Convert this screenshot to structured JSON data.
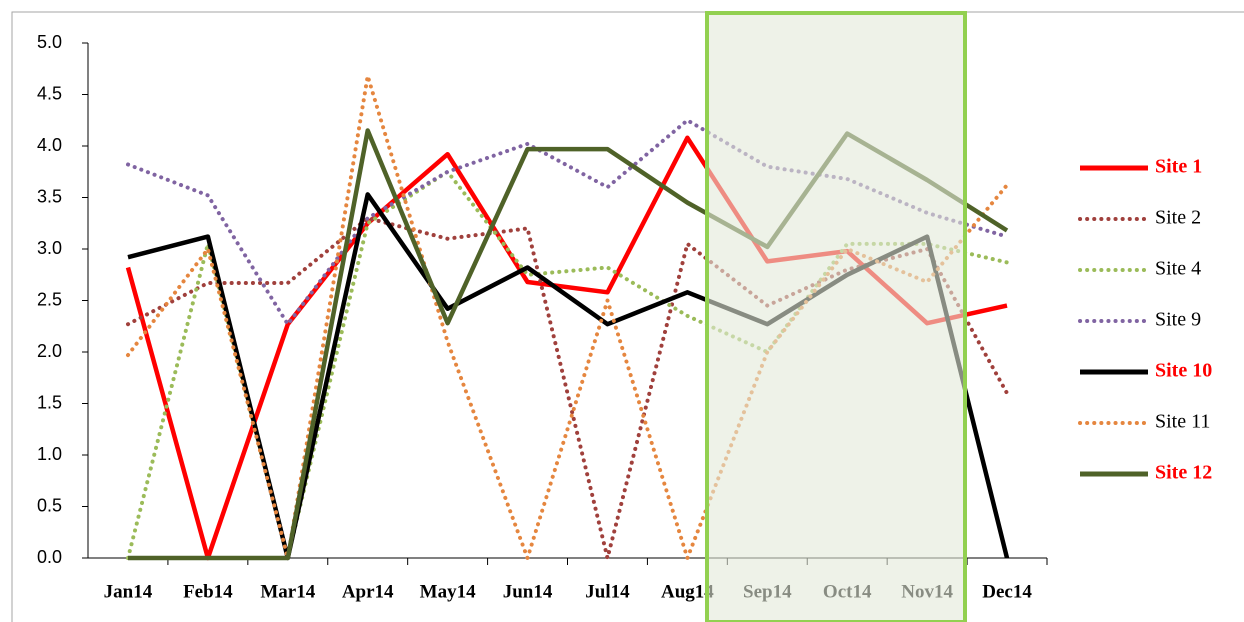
{
  "chart_data": {
    "type": "line",
    "categories": [
      "Jan14",
      "Feb14",
      "Mar14",
      "Apr14",
      "May14",
      "Jun14",
      "Jul14",
      "Aug14",
      "Sep14",
      "Oct14",
      "Nov14",
      "Dec14"
    ],
    "ylim": [
      0,
      5
    ],
    "yticks": [
      {
        "value": 0,
        "label": "0.0"
      },
      0.5,
      {
        "value": 1,
        "label": "1.0"
      },
      1.5,
      {
        "value": 2,
        "label": "2.0"
      },
      2.5,
      {
        "value": 3,
        "label": "3.0"
      },
      3.5,
      {
        "value": 4,
        "label": "4.0"
      },
      4.5,
      {
        "value": 5,
        "label": "5.0"
      }
    ],
    "grid": false,
    "legend": "right",
    "series": [
      {
        "name": "Site 1",
        "color": "#ff0000",
        "style": "solid",
        "label_color": "#ff0000",
        "label_bold": true,
        "values": [
          2.82,
          0,
          2.27,
          3.25,
          3.92,
          2.68,
          2.58,
          4.08,
          2.88,
          2.98,
          2.28,
          2.45
        ]
      },
      {
        "name": "Site 2",
        "color": "#a0403c",
        "style": "dotted",
        "label_color": "#000000",
        "label_bold": false,
        "values": [
          2.27,
          2.67,
          2.67,
          3.3,
          3.1,
          3.2,
          0,
          3.05,
          2.45,
          2.8,
          3.0,
          1.6
        ]
      },
      {
        "name": "Site 4",
        "color": "#9bbb59",
        "style": "dotted",
        "label_color": "#000000",
        "label_bold": false,
        "values": [
          0,
          3.05,
          0,
          3.25,
          3.75,
          2.75,
          2.82,
          2.35,
          2.0,
          3.05,
          3.05,
          2.87
        ]
      },
      {
        "name": "Site 9",
        "color": "#8064a2",
        "style": "dotted",
        "label_color": "#000000",
        "label_bold": false,
        "values": [
          3.82,
          3.52,
          2.27,
          3.3,
          3.75,
          4.02,
          3.6,
          4.25,
          3.8,
          3.68,
          3.35,
          3.12
        ]
      },
      {
        "name": "Site 10",
        "color": "#000000",
        "style": "solid",
        "label_color": "#ff0000",
        "label_bold": true,
        "values": [
          2.92,
          3.12,
          0,
          3.53,
          2.42,
          2.82,
          2.27,
          2.58,
          2.27,
          2.75,
          3.12,
          0
        ]
      },
      {
        "name": "Site 11",
        "color": "#e5863f",
        "style": "dotted",
        "label_color": "#000000",
        "label_bold": false,
        "values": [
          1.97,
          3.0,
          0,
          4.68,
          2.1,
          0,
          2.5,
          0,
          2.0,
          3.0,
          2.68,
          3.62
        ]
      },
      {
        "name": "Site 12",
        "color": "#4f6228",
        "style": "solid",
        "label_color": "#ff0000",
        "label_bold": true,
        "values": [
          0,
          0,
          0,
          4.15,
          2.28,
          3.97,
          3.97,
          3.45,
          3.02,
          4.12,
          3.67,
          3.18
        ]
      }
    ]
  }
}
